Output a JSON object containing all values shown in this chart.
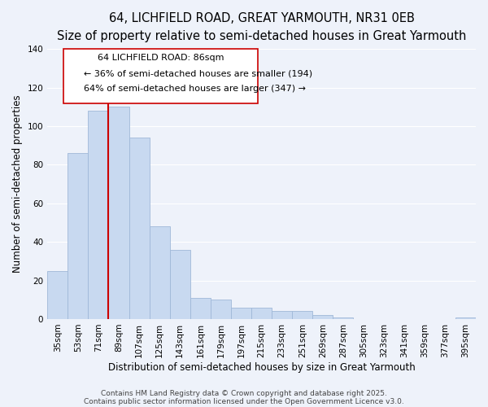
{
  "title_line1": "64, LICHFIELD ROAD, GREAT YARMOUTH, NR31 0EB",
  "title_line2": "Size of property relative to semi-detached houses in Great Yarmouth",
  "xlabel": "Distribution of semi-detached houses by size in Great Yarmouth",
  "ylabel": "Number of semi-detached properties",
  "bar_labels": [
    "35sqm",
    "53sqm",
    "71sqm",
    "89sqm",
    "107sqm",
    "125sqm",
    "143sqm",
    "161sqm",
    "179sqm",
    "197sqm",
    "215sqm",
    "233sqm",
    "251sqm",
    "269sqm",
    "287sqm",
    "305sqm",
    "323sqm",
    "341sqm",
    "359sqm",
    "377sqm",
    "395sqm"
  ],
  "bar_values": [
    25,
    86,
    108,
    110,
    94,
    48,
    36,
    11,
    10,
    6,
    6,
    4,
    4,
    2,
    1,
    0,
    0,
    0,
    0,
    0,
    1
  ],
  "bar_color": "#c8d9f0",
  "bar_edge_color": "#a0b8d8",
  "background_color": "#eef2fa",
  "grid_color": "#ffffff",
  "vline_color": "#cc0000",
  "annotation_text_line1": "64 LICHFIELD ROAD: 86sqm",
  "annotation_text_line2": "← 36% of semi-detached houses are smaller (194)",
  "annotation_text_line3": "64% of semi-detached houses are larger (347) →",
  "annotation_box_color": "#ffffff",
  "annotation_box_edge": "#cc0000",
  "ylim": [
    0,
    140
  ],
  "yticks": [
    0,
    20,
    40,
    60,
    80,
    100,
    120,
    140
  ],
  "footer_line1": "Contains HM Land Registry data © Crown copyright and database right 2025.",
  "footer_line2": "Contains public sector information licensed under the Open Government Licence v3.0.",
  "title_fontsize": 10.5,
  "subtitle_fontsize": 9,
  "axis_label_fontsize": 8.5,
  "tick_fontsize": 7.5,
  "annotation_fontsize": 8,
  "footer_fontsize": 6.5
}
